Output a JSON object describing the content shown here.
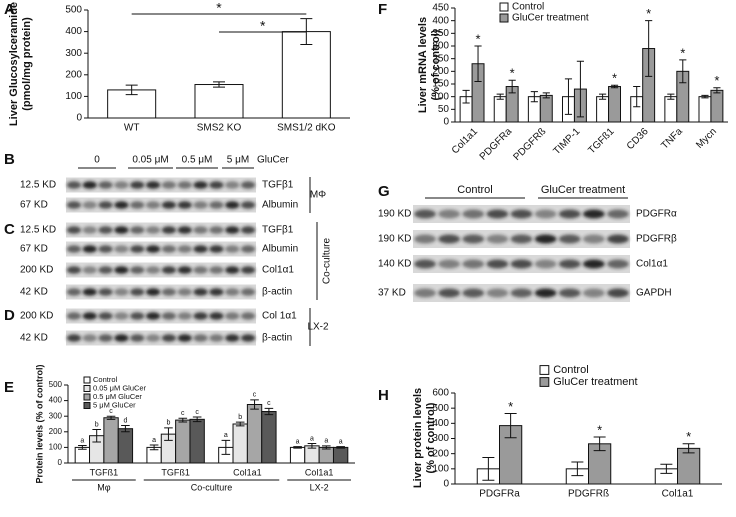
{
  "chart_data": [
    {
      "type": "bar",
      "panel": "A",
      "y_label": [
        "Liver Glucosylceramide",
        "(pmol/mg protein)"
      ],
      "categories": [
        "WT",
        "SMS2 KO",
        "SMS1/2 dKO"
      ],
      "values": [
        130,
        155,
        400
      ],
      "errors": [
        22,
        12,
        60
      ],
      "color": "#ffffff",
      "ylim": [
        0,
        500
      ],
      "yticks": [
        0,
        100,
        200,
        300,
        400,
        500
      ],
      "annotations": [
        "*",
        "*"
      ]
    },
    {
      "type": "bar",
      "panel": "E",
      "y_label": "Protein levels (% of control)",
      "categories": [
        "TGFß1",
        "TGFß1",
        "Col1a1",
        "Col1a1"
      ],
      "groups": [
        "Mφ",
        "Co-culture",
        "LX-2"
      ],
      "series": [
        {
          "name": "Control",
          "color": "#ffffff",
          "values": [
            100,
            100,
            100,
            100
          ],
          "errors": [
            12,
            15,
            45,
            5
          ],
          "marks": [
            "a",
            "a",
            "a",
            "a"
          ]
        },
        {
          "name": "0.05 μM GluCer",
          "color": "#e6e6e6",
          "values": [
            175,
            185,
            250,
            110
          ],
          "errors": [
            40,
            40,
            12,
            15
          ],
          "marks": [
            "b",
            "b",
            "b",
            "a"
          ]
        },
        {
          "name": "0.5 μM GluCer",
          "color": "#a6a6a6",
          "values": [
            290,
            275,
            375,
            100
          ],
          "errors": [
            10,
            12,
            30,
            10
          ],
          "marks": [
            "c",
            "c",
            "c",
            "a"
          ]
        },
        {
          "name": "5 μM GluCer",
          "color": "#595959",
          "values": [
            220,
            280,
            330,
            100
          ],
          "errors": [
            20,
            15,
            20,
            5
          ],
          "marks": [
            "d",
            "c",
            "c",
            "a"
          ]
        }
      ],
      "ylim": [
        0,
        500
      ],
      "yticks": [
        0,
        100,
        200,
        300,
        400,
        500
      ]
    },
    {
      "type": "bar",
      "panel": "F",
      "y_label": [
        "Liver mRNA levels",
        "(% of control)"
      ],
      "categories": [
        "Col1a1",
        "PDGFRa",
        "PDGFRß",
        "TIMP-1",
        "TGFß1",
        "CD36",
        "TNFa",
        "Mycn"
      ],
      "series": [
        {
          "name": "Control",
          "color": "#ffffff",
          "values": [
            100,
            100,
            100,
            100,
            100,
            100,
            100,
            100
          ],
          "errors": [
            25,
            10,
            20,
            70,
            10,
            40,
            10,
            5
          ],
          "marks": [
            null,
            null,
            null,
            null,
            null,
            null,
            null,
            null
          ]
        },
        {
          "name": "GluCer treatment",
          "color": "#9a9a9a",
          "values": [
            230,
            140,
            105,
            130,
            140,
            290,
            200,
            125
          ],
          "errors": [
            70,
            25,
            10,
            110,
            5,
            110,
            45,
            10
          ],
          "marks": [
            "*",
            "*",
            null,
            null,
            "*",
            "*",
            "*",
            "*"
          ]
        }
      ],
      "ylim": [
        0,
        450
      ],
      "yticks": [
        0,
        50,
        100,
        150,
        200,
        250,
        300,
        350,
        400,
        450
      ]
    },
    {
      "type": "bar",
      "panel": "H",
      "y_label": [
        "Liver protein levels",
        "(% of control)"
      ],
      "categories": [
        "PDGFRa",
        "PDGFRß",
        "Col1a1"
      ],
      "series": [
        {
          "name": "Control",
          "color": "#ffffff",
          "values": [
            100,
            100,
            100
          ],
          "errors": [
            75,
            45,
            30
          ],
          "marks": [
            null,
            null,
            null
          ]
        },
        {
          "name": "GluCer treatment",
          "color": "#9a9a9a",
          "values": [
            385,
            265,
            235
          ],
          "errors": [
            80,
            45,
            30
          ],
          "marks": [
            "*",
            "*",
            "*"
          ]
        }
      ],
      "ylim": [
        0,
        600
      ],
      "yticks": [
        0,
        100,
        200,
        300,
        400,
        500,
        600
      ]
    }
  ],
  "blots": [
    {
      "panel": "B",
      "lanes": [
        "0",
        "0.05 μM",
        "0.5 μM",
        "5 μM"
      ],
      "treatment": "GluCer",
      "cell": "MΦ",
      "rows": [
        {
          "kd": "12.5 KD",
          "name": "TGFβ1"
        },
        {
          "kd": "67 KD",
          "name": "Albumin"
        }
      ]
    },
    {
      "panel": "C",
      "cell": "Co-culture",
      "rows": [
        {
          "kd": "12.5 KD",
          "name": "TGFβ1"
        },
        {
          "kd": "67 KD",
          "name": "Albumin"
        },
        {
          "kd": "200 KD",
          "name": "Col1α1"
        },
        {
          "kd": "42 KD",
          "name": "β-actin"
        }
      ]
    },
    {
      "panel": "D",
      "cell": "LX-2",
      "rows": [
        {
          "kd": "200 KD",
          "name": "Col 1α1"
        },
        {
          "kd": "42 KD",
          "name": "β-actin"
        }
      ]
    },
    {
      "panel": "G",
      "lanes": [
        "Control",
        "GluCer treatment"
      ],
      "rows": [
        {
          "kd": "190 KD",
          "name": "PDGFRα"
        },
        {
          "kd": "190 KD",
          "name": "PDGFRβ"
        },
        {
          "kd": "140 KD",
          "name": "Col1α1"
        },
        {
          "kd": "37 KD",
          "name": "GAPDH"
        }
      ]
    }
  ]
}
